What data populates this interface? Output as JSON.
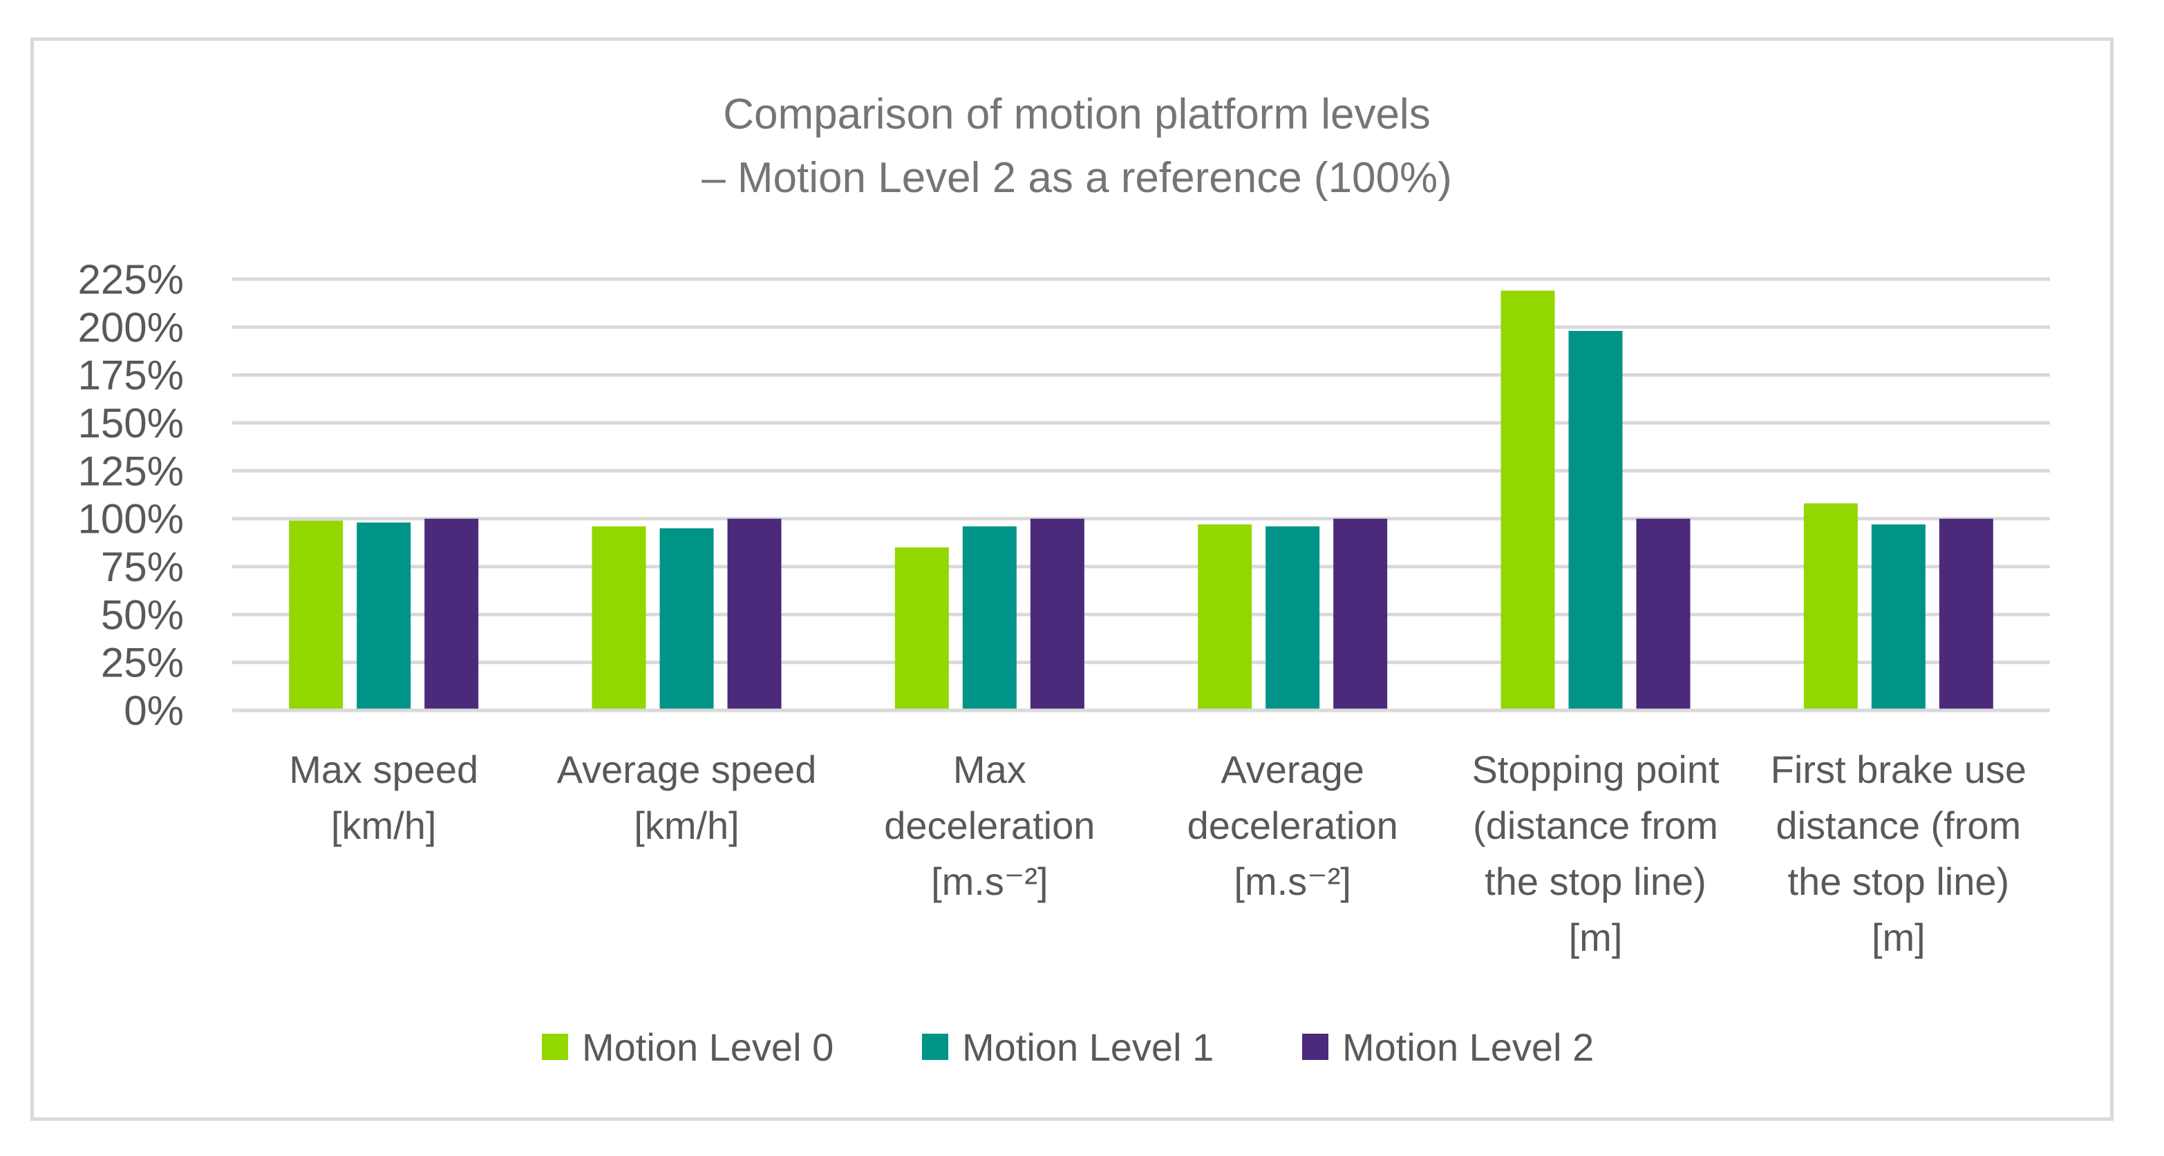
{
  "chart_data": {
    "type": "bar",
    "title": [
      "Comparison of motion platform levels",
      "– Motion Level 2 as a reference (100%)"
    ],
    "xlabel": "",
    "ylabel": "",
    "ylim": [
      0,
      225
    ],
    "yticks": [
      0,
      25,
      50,
      75,
      100,
      125,
      150,
      175,
      200,
      225
    ],
    "ytick_labels": [
      "0%",
      "25%",
      "50%",
      "75%",
      "100%",
      "125%",
      "150%",
      "175%",
      "200%",
      "225%"
    ],
    "grid": true,
    "legend_position": "bottom",
    "categories": [
      [
        "Max speed",
        "[km/h]"
      ],
      [
        "Average speed",
        "[km/h]"
      ],
      [
        "Max",
        "deceleration",
        "[m.s⁻²]"
      ],
      [
        "Average",
        "deceleration",
        "[m.s⁻²]"
      ],
      [
        "Stopping point",
        "(distance from",
        "the stop line)",
        "[m]"
      ],
      [
        "First brake use",
        "distance (from",
        "the stop line)",
        "[m]"
      ]
    ],
    "series": [
      {
        "name": "Motion Level 0",
        "color": "#92d700",
        "values": [
          99,
          96,
          85,
          97,
          219,
          108
        ]
      },
      {
        "name": "Motion Level 1",
        "color": "#009488",
        "values": [
          98,
          95,
          96,
          96,
          198,
          97
        ]
      },
      {
        "name": "Motion Level 2",
        "color": "#4b2a7c",
        "values": [
          100,
          100,
          100,
          100,
          100,
          100
        ]
      }
    ]
  }
}
